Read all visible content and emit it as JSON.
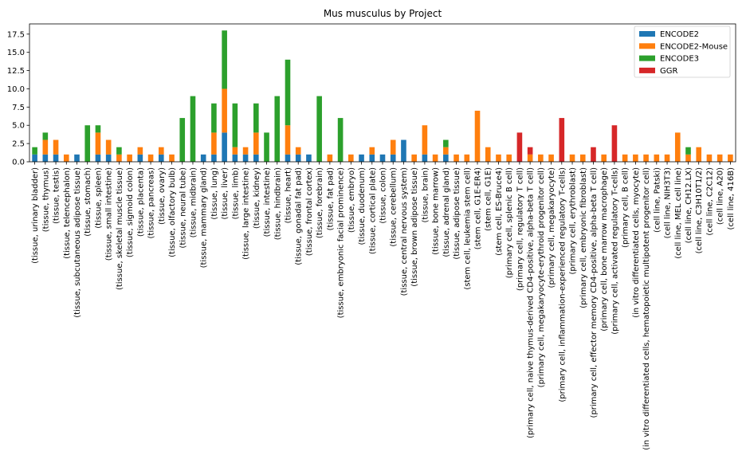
{
  "chart_data": {
    "type": "bar",
    "stacked": true,
    "title": "Mus musculus by Project",
    "xlabel": "",
    "ylabel": "",
    "ylim": [
      0,
      18.9
    ],
    "yticks": [
      0.0,
      2.5,
      5.0,
      7.5,
      10.0,
      12.5,
      15.0,
      17.5
    ],
    "ytick_labels": [
      "0.0",
      "2.5",
      "5.0",
      "7.5",
      "10.0",
      "12.5",
      "15.0",
      "17.5"
    ],
    "grid": false,
    "legend_position": "top-right",
    "categories": [
      "(tissue, urinary bladder)",
      "(tissue, thymus)",
      "(tissue, testis)",
      "(tissue, telencephalon)",
      "(tissue, subcutaneous adipose tissue)",
      "(tissue, stomach)",
      "(tissue, spleen)",
      "(tissue, small intestine)",
      "(tissue, skeletal muscle tissue)",
      "(tissue, sigmoid colon)",
      "(tissue, placenta)",
      "(tissue, pancreas)",
      "(tissue, ovary)",
      "(tissue, olfactory bulb)",
      "(tissue, neural tube)",
      "(tissue, midbrain)",
      "(tissue, mammary gland)",
      "(tissue, lung)",
      "(tissue, liver)",
      "(tissue, limb)",
      "(tissue, large intestine)",
      "(tissue, kidney)",
      "(tissue, intestine)",
      "(tissue, hindbrain)",
      "(tissue, heart)",
      "(tissue, gonadal fat pad)",
      "(tissue, frontal cortex)",
      "(tissue, forebrain)",
      "(tissue, fat pad)",
      "(tissue, embryonic facial prominence)",
      "(tissue, embryo)",
      "(tissue, duodenum)",
      "(tissue, cortical plate)",
      "(tissue, colon)",
      "(tissue, cerebellum)",
      "(tissue, central nervous system)",
      "(tissue, brown adipose tissue)",
      "(tissue, brain)",
      "(tissue, bone marrow)",
      "(tissue, adrenal gland)",
      "(tissue, adipose tissue)",
      "(stem cell, leukemia stem cell)",
      "(stem cell, G1E-ER4)",
      "(stem cell, G1E)",
      "(stem cell, ES-Bruce4)",
      "(primary cell, splenic B cell)",
      "(primary cell, regulatory T cell)",
      "(primary cell, naive thymus-derived CD4-positive, alpha-beta T cell)",
      "(primary cell, megakaryocyte-erythroid progenitor cell)",
      "(primary cell, megakaryocyte)",
      "(primary cell, inflammation-experienced regulatory T-cells)",
      "(primary cell, erythroblast)",
      "(primary cell, embryonic fibroblast)",
      "(primary cell, effector memory CD4-positive, alpha-beta T cell)",
      "(primary cell, bone marrow macrophage)",
      "(primary cell, activated regulatory T-cells)",
      "(primary cell, B cell)",
      "(in vitro differentiated cells, myocyte)",
      "(in vitro differentiated cells, hematopoietic multipotent progenitor cell)",
      "(cell line, Patski)",
      "(cell line, NIH3T3)",
      "(cell line, MEL cell line)",
      "(cell line, CH12.LX)",
      "(cell line, C3H10T1/2)",
      "(cell line, C2C12)",
      "(cell line, A20)",
      "(cell line, 416B)"
    ],
    "series": [
      {
        "name": "ENCODE2",
        "color": "#1f77b4",
        "values": [
          1,
          1,
          1,
          0,
          1,
          0,
          1,
          1,
          0,
          0,
          1,
          0,
          1,
          0,
          0,
          0,
          1,
          1,
          4,
          1,
          1,
          1,
          0,
          0,
          1,
          1,
          1,
          0,
          0,
          0,
          0,
          1,
          1,
          1,
          1,
          3,
          0,
          1,
          0,
          1,
          0,
          0,
          0,
          0,
          0,
          0,
          0,
          0,
          0,
          0,
          0,
          0,
          0,
          0,
          0,
          0,
          0,
          0,
          0,
          0,
          0,
          0,
          0,
          0,
          0,
          0,
          0
        ]
      },
      {
        "name": "ENCODE2-Mouse",
        "color": "#ff7f0e",
        "values": [
          0,
          2,
          2,
          1,
          0,
          0,
          3,
          2,
          1,
          1,
          1,
          1,
          1,
          1,
          0,
          0,
          0,
          3,
          6,
          1,
          1,
          3,
          0,
          0,
          4,
          1,
          0,
          0,
          1,
          0,
          1,
          0,
          1,
          0,
          2,
          0,
          1,
          4,
          1,
          1,
          1,
          1,
          7,
          2,
          1,
          1,
          0,
          1,
          1,
          1,
          0,
          1,
          1,
          0,
          1,
          0,
          1,
          1,
          1,
          1,
          1,
          4,
          1,
          2,
          1,
          1,
          1
        ]
      },
      {
        "name": "ENCODE3",
        "color": "#2ca02c",
        "values": [
          1,
          1,
          0,
          0,
          0,
          5,
          1,
          0,
          1,
          0,
          0,
          0,
          0,
          0,
          6,
          9,
          0,
          4,
          8,
          6,
          0,
          4,
          4,
          9,
          9,
          0,
          0,
          9,
          0,
          6,
          0,
          0,
          0,
          0,
          0,
          0,
          0,
          0,
          0,
          1,
          0,
          0,
          0,
          0,
          0,
          0,
          0,
          0,
          0,
          0,
          0,
          0,
          0,
          0,
          0,
          0,
          0,
          0,
          0,
          0,
          0,
          0,
          1,
          0,
          0,
          0,
          0
        ]
      },
      {
        "name": "GGR",
        "color": "#d62728",
        "values": [
          0,
          0,
          0,
          0,
          0,
          0,
          0,
          0,
          0,
          0,
          0,
          0,
          0,
          0,
          0,
          0,
          0,
          0,
          0,
          0,
          0,
          0,
          0,
          0,
          0,
          0,
          0,
          0,
          0,
          0,
          0,
          0,
          0,
          0,
          0,
          0,
          0,
          0,
          0,
          0,
          0,
          0,
          0,
          0,
          0,
          0,
          4,
          1,
          0,
          0,
          6,
          0,
          0,
          2,
          0,
          5,
          0,
          0,
          0,
          0,
          0,
          0,
          0,
          0,
          0,
          0,
          0
        ]
      }
    ]
  }
}
